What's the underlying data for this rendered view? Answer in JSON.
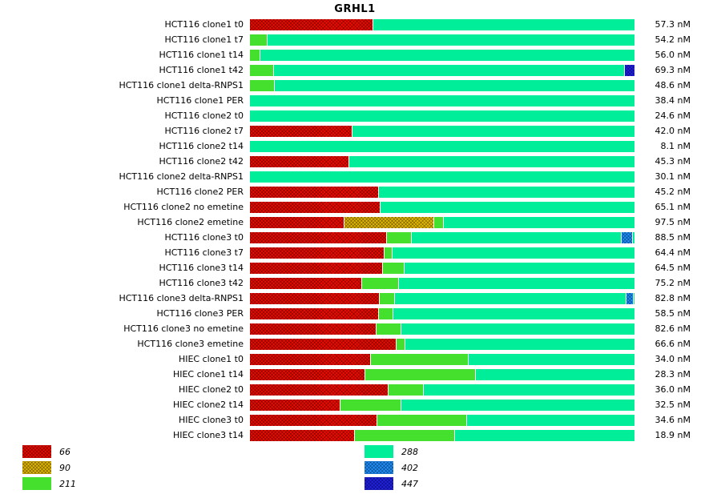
{
  "chart_data": {
    "type": "bar",
    "orientation": "horizontal",
    "stacked": true,
    "normalized": true,
    "title": "GRHL1",
    "legend_position": "bottom",
    "legend": [
      {
        "label": "66",
        "color": "#ee0b00",
        "pattern": "crosshatch",
        "column": "left"
      },
      {
        "label": "90",
        "color": "#e3b800",
        "pattern": "crosshatch",
        "column": "left"
      },
      {
        "label": "211",
        "color": "#45e02d",
        "pattern": "solid",
        "column": "left"
      },
      {
        "label": "288",
        "color": "#00ee9a",
        "pattern": "solid",
        "column": "right"
      },
      {
        "label": "402",
        "color": "#1e90ff",
        "pattern": "crosshatch",
        "column": "right"
      },
      {
        "label": "447",
        "color": "#2020e8",
        "pattern": "crosshatch",
        "column": "right"
      }
    ],
    "rows": [
      {
        "label": "HCT116 clone1 t0",
        "value": 57.3,
        "value_label": "57.3 nM",
        "segments": [
          {
            "series": "66",
            "pct": 31.9
          },
          {
            "series": "288",
            "pct": 68.1
          }
        ]
      },
      {
        "label": "HCT116 clone1 t7",
        "value": 54.2,
        "value_label": "54.2 nM",
        "segments": [
          {
            "series": "211",
            "pct": 4.4
          },
          {
            "series": "288",
            "pct": 95.6
          }
        ]
      },
      {
        "label": "HCT116 clone1 t14",
        "value": 56.0,
        "value_label": "56.0 nM",
        "segments": [
          {
            "series": "211",
            "pct": 2.5
          },
          {
            "series": "288",
            "pct": 97.5
          }
        ]
      },
      {
        "label": "HCT116 clone1 t42",
        "value": 69.3,
        "value_label": "69.3 nM",
        "segments": [
          {
            "series": "211",
            "pct": 6.0
          },
          {
            "series": "288",
            "pct": 91.2
          },
          {
            "series": "447",
            "pct": 2.8
          }
        ]
      },
      {
        "label": "HCT116 clone1 delta-RNPS1",
        "value": 48.6,
        "value_label": "48.6 nM",
        "segments": [
          {
            "series": "211",
            "pct": 6.2
          },
          {
            "series": "288",
            "pct": 93.8
          }
        ]
      },
      {
        "label": "HCT116 clone1 PER",
        "value": 38.4,
        "value_label": "38.4 nM",
        "segments": [
          {
            "series": "288",
            "pct": 100
          }
        ]
      },
      {
        "label": "HCT116 clone2 t0",
        "value": 24.6,
        "value_label": "24.6 nM",
        "segments": [
          {
            "series": "288",
            "pct": 100
          }
        ]
      },
      {
        "label": "HCT116 clone2 t7",
        "value": 42.0,
        "value_label": "42.0 nM",
        "segments": [
          {
            "series": "66",
            "pct": 26.5
          },
          {
            "series": "288",
            "pct": 73.5
          }
        ]
      },
      {
        "label": "HCT116 clone2 t14",
        "value": 8.1,
        "value_label": "8.1 nM",
        "segments": [
          {
            "series": "288",
            "pct": 100
          }
        ]
      },
      {
        "label": "HCT116 clone2 t42",
        "value": 45.3,
        "value_label": "45.3 nM",
        "segments": [
          {
            "series": "66",
            "pct": 25.6
          },
          {
            "series": "288",
            "pct": 74.4
          }
        ]
      },
      {
        "label": "HCT116 clone2 delta-RNPS1",
        "value": 30.1,
        "value_label": "30.1 nM",
        "segments": [
          {
            "series": "288",
            "pct": 100
          }
        ]
      },
      {
        "label": "HCT116 clone2 PER",
        "value": 45.2,
        "value_label": "45.2 nM",
        "segments": [
          {
            "series": "66",
            "pct": 33.3
          },
          {
            "series": "288",
            "pct": 66.7
          }
        ]
      },
      {
        "label": "HCT116 clone2 no emetine",
        "value": 65.1,
        "value_label": "65.1 nM",
        "segments": [
          {
            "series": "66",
            "pct": 33.8
          },
          {
            "series": "288",
            "pct": 66.2
          }
        ]
      },
      {
        "label": "HCT116 clone2 emetine",
        "value": 97.5,
        "value_label": "97.5 nM",
        "segments": [
          {
            "series": "66",
            "pct": 24.4
          },
          {
            "series": "90",
            "pct": 23.3
          },
          {
            "series": "211",
            "pct": 2.5
          },
          {
            "series": "288",
            "pct": 49.8
          }
        ]
      },
      {
        "label": "HCT116 clone3 t0",
        "value": 88.5,
        "value_label": "88.5 nM",
        "segments": [
          {
            "series": "66",
            "pct": 35.4
          },
          {
            "series": "211",
            "pct": 6.5
          },
          {
            "series": "288",
            "pct": 54.6
          },
          {
            "series": "402",
            "pct": 2.9
          },
          {
            "series": "288",
            "pct": 0.6
          }
        ]
      },
      {
        "label": "HCT116 clone3 t7",
        "value": 64.4,
        "value_label": "64.4 nM",
        "segments": [
          {
            "series": "66",
            "pct": 34.8
          },
          {
            "series": "211",
            "pct": 2.1
          },
          {
            "series": "288",
            "pct": 63.1
          }
        ]
      },
      {
        "label": "HCT116 clone3 t14",
        "value": 64.5,
        "value_label": "64.5 nM",
        "segments": [
          {
            "series": "66",
            "pct": 34.4
          },
          {
            "series": "211",
            "pct": 5.6
          },
          {
            "series": "288",
            "pct": 60.0
          }
        ]
      },
      {
        "label": "HCT116 clone3 t42",
        "value": 75.2,
        "value_label": "75.2 nM",
        "segments": [
          {
            "series": "66",
            "pct": 29.0
          },
          {
            "series": "211",
            "pct": 9.6
          },
          {
            "series": "288",
            "pct": 61.4
          }
        ]
      },
      {
        "label": "HCT116 clone3 delta-RNPS1",
        "value": 82.8,
        "value_label": "82.8 nM",
        "segments": [
          {
            "series": "66",
            "pct": 33.5
          },
          {
            "series": "211",
            "pct": 4.0
          },
          {
            "series": "288",
            "pct": 60.2
          },
          {
            "series": "402",
            "pct": 1.9
          },
          {
            "series": "288",
            "pct": 0.4
          }
        ]
      },
      {
        "label": "HCT116 clone3 PER",
        "value": 58.5,
        "value_label": "58.5 nM",
        "segments": [
          {
            "series": "66",
            "pct": 33.3
          },
          {
            "series": "211",
            "pct": 3.8
          },
          {
            "series": "288",
            "pct": 62.9
          }
        ]
      },
      {
        "label": "HCT116 clone3 no emetine",
        "value": 82.6,
        "value_label": "82.6 nM",
        "segments": [
          {
            "series": "66",
            "pct": 32.7
          },
          {
            "series": "211",
            "pct": 6.5
          },
          {
            "series": "288",
            "pct": 60.8
          }
        ]
      },
      {
        "label": "HCT116 clone3 emetine",
        "value": 66.6,
        "value_label": "66.6 nM",
        "segments": [
          {
            "series": "66",
            "pct": 37.9
          },
          {
            "series": "211",
            "pct": 2.3
          },
          {
            "series": "288",
            "pct": 59.8
          }
        ]
      },
      {
        "label": "HIEC clone1 t0",
        "value": 34.0,
        "value_label": "34.0 nM",
        "segments": [
          {
            "series": "66",
            "pct": 31.3
          },
          {
            "series": "211",
            "pct": 25.4
          },
          {
            "series": "288",
            "pct": 43.3
          }
        ]
      },
      {
        "label": "HIEC clone1 t14",
        "value": 28.3,
        "value_label": "28.3 nM",
        "segments": [
          {
            "series": "66",
            "pct": 29.8
          },
          {
            "series": "211",
            "pct": 28.7
          },
          {
            "series": "288",
            "pct": 41.5
          }
        ]
      },
      {
        "label": "HIEC clone2 t0",
        "value": 36.0,
        "value_label": "36.0 nM",
        "segments": [
          {
            "series": "66",
            "pct": 35.8
          },
          {
            "series": "211",
            "pct": 9.2
          },
          {
            "series": "288",
            "pct": 55.0
          }
        ]
      },
      {
        "label": "HIEC clone2 t14",
        "value": 32.5,
        "value_label": "32.5 nM",
        "segments": [
          {
            "series": "66",
            "pct": 23.3
          },
          {
            "series": "211",
            "pct": 15.8
          },
          {
            "series": "288",
            "pct": 60.9
          }
        ]
      },
      {
        "label": "HIEC clone3 t0",
        "value": 34.6,
        "value_label": "34.6 nM",
        "segments": [
          {
            "series": "66",
            "pct": 32.9
          },
          {
            "series": "211",
            "pct": 23.3
          },
          {
            "series": "288",
            "pct": 43.8
          }
        ]
      },
      {
        "label": "HIEC clone3 t14",
        "value": 18.9,
        "value_label": "18.9 nM",
        "segments": [
          {
            "series": "66",
            "pct": 27.1
          },
          {
            "series": "211",
            "pct": 26.0
          },
          {
            "series": "288",
            "pct": 46.9
          }
        ]
      }
    ]
  }
}
